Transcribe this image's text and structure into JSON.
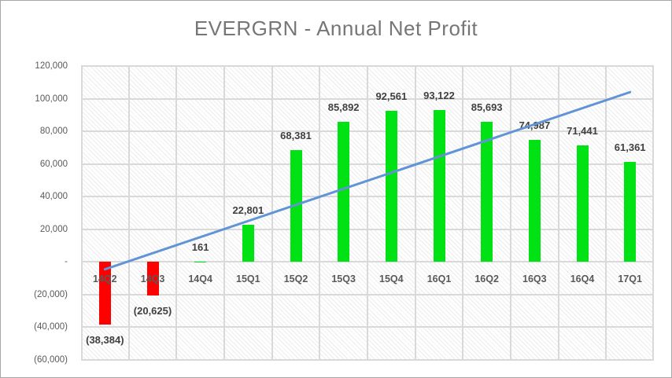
{
  "window": {
    "background": "#ffffff",
    "border_color": "#a6a6a6"
  },
  "chart_data": {
    "type": "bar",
    "title": "EVERGRN  - Annual Net Profit",
    "xlabel": "",
    "ylabel": "",
    "categories": [
      "14Q2",
      "14Q3",
      "14Q4",
      "15Q1",
      "15Q2",
      "15Q3",
      "15Q4",
      "16Q1",
      "16Q2",
      "16Q3",
      "16Q4",
      "17Q1"
    ],
    "values": [
      -38384,
      -20625,
      161,
      22801,
      68381,
      85892,
      92561,
      93122,
      85693,
      74987,
      71441,
      61361
    ],
    "data_labels": [
      "(38,384)",
      "(20,625)",
      "161",
      "22,801",
      "68,381",
      "85,892",
      "92,561",
      "93,122",
      "85,693",
      "74,987",
      "71,441",
      "61,361"
    ],
    "ylim": [
      -60000,
      120000
    ],
    "y_tick_step": 20000,
    "y_ticks": [
      {
        "value": 120000,
        "label": "120,000"
      },
      {
        "value": 100000,
        "label": "100,000"
      },
      {
        "value": 80000,
        "label": "80,000"
      },
      {
        "value": 60000,
        "label": "60,000"
      },
      {
        "value": 40000,
        "label": "40,000"
      },
      {
        "value": 20000,
        "label": "20,000"
      },
      {
        "value": 0,
        "label": "-"
      },
      {
        "value": -20000,
        "label": "(20,000)"
      },
      {
        "value": -40000,
        "label": "(40,000)"
      },
      {
        "value": -60000,
        "label": "(60,000)"
      }
    ],
    "grid": true,
    "legend_position": "none",
    "plot_pattern": "light-diagonal-hatch",
    "colors": {
      "bar_positive": "#00e213",
      "bar_negative": "#fe0000",
      "gridline": "#d9d9d9",
      "axis_text": "#595959",
      "data_label_text": "#404040",
      "title_text": "#767676",
      "trendline": "#6094d6"
    },
    "trendline": {
      "type": "linear",
      "start_category": "14Q2",
      "end_category": "17Q1",
      "start_value": -4500,
      "end_value": 104000
    }
  }
}
